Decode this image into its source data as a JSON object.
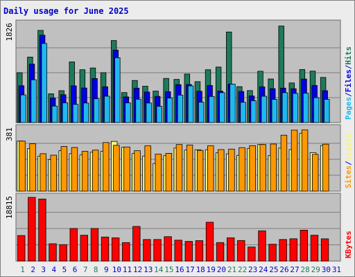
{
  "colors": {
    "background": "#ececec",
    "panel": "#c0c0c0",
    "title": "#0000c8",
    "hits": "#1e7a5a",
    "files": "#0000e0",
    "pages": "#20b8f0",
    "visits": "#f5f57a",
    "sites": "#ff9800",
    "kbytes": "#ff0000",
    "weekend": "#1e7a5a",
    "weekday": "#0000c8"
  },
  "chart_data": {
    "type": "bar",
    "title": "Daily usage for June 2025",
    "categories": [
      "1",
      "2",
      "3",
      "4",
      "5",
      "6",
      "7",
      "8",
      "9",
      "10",
      "11",
      "12",
      "13",
      "14",
      "15",
      "16",
      "17",
      "18",
      "19",
      "20",
      "21",
      "22",
      "23",
      "24",
      "25",
      "26",
      "27",
      "28",
      "29",
      "30",
      "31"
    ],
    "weekend_days": [
      "1",
      "7",
      "8",
      "14",
      "15",
      "21",
      "22",
      "28",
      "29"
    ],
    "grid": true,
    "panels": [
      {
        "id": "hpf",
        "max_label": "1826",
        "ylim": [
          0,
          1826
        ],
        "legend": [
          {
            "text": "Pages",
            "color_key": "pages"
          },
          {
            "text": "/",
            "color_key": "weekday"
          },
          {
            "text": "Files",
            "color_key": "files"
          },
          {
            "text": "/",
            "color_key": "weekday"
          },
          {
            "text": "Hits",
            "color_key": "hits"
          }
        ],
        "series": [
          {
            "name": "Hits",
            "color_key": "hits",
            "values": [
              927,
              1216,
              1712,
              535,
              592,
              1127,
              982,
              1014,
              927,
              1523,
              557,
              782,
              675,
              585,
              820,
              802,
              901,
              760,
              981,
              1031,
              1682,
              667,
              594,
              953,
              810,
              1793,
              736,
              985,
              956,
              838,
              0
            ]
          },
          {
            "name": "Files",
            "color_key": "files",
            "values": [
              684,
              1086,
              1623,
              456,
              517,
              682,
              642,
              818,
              665,
              1346,
              477,
              639,
              567,
              487,
              573,
              704,
              707,
              582,
              688,
              584,
              714,
              577,
              494,
              664,
              630,
              640,
              628,
              808,
              689,
              592,
              0
            ]
          },
          {
            "name": "Pages",
            "color_key": "pages",
            "values": [
              514,
              795,
              1469,
              306,
              366,
              338,
              363,
              442,
              490,
              1204,
              366,
              433,
              363,
              302,
              455,
              510,
              681,
              378,
              485,
              555,
              714,
              377,
              406,
              489,
              430,
              555,
              542,
              545,
              463,
              431,
              0
            ]
          }
        ]
      },
      {
        "id": "vs",
        "max_label": "381",
        "ylim": [
          0,
          381
        ],
        "legend": [
          {
            "text": "Sites",
            "color_key": "sites"
          },
          {
            "text": "/",
            "color_key": "weekday"
          },
          {
            "text": "Visits",
            "color_key": "visits"
          }
        ],
        "series": [
          {
            "name": "Visits",
            "color_key": "visits",
            "values": [
              306,
              260,
              213,
              193,
              247,
              229,
              221,
              238,
              244,
              304,
              268,
              230,
              214,
              169,
              217,
              263,
              251,
              253,
              253,
              234,
              228,
              219,
              261,
              285,
              217,
              263,
              254,
              353,
              235,
              279,
              0
            ]
          },
          {
            "name": "Sites",
            "color_key": "sites",
            "values": [
              306,
              290,
              229,
              220,
              273,
              267,
              243,
              251,
              297,
              280,
              270,
              247,
              277,
              226,
              231,
              285,
              282,
              249,
              277,
              254,
              257,
              266,
              278,
              285,
              288,
              342,
              373,
              374,
              225,
              287,
              0
            ]
          }
        ]
      },
      {
        "id": "kb",
        "max_label": "18815",
        "ylim": [
          0,
          18815
        ],
        "legend": [
          {
            "text": "KBytes",
            "color_key": "kbytes"
          }
        ],
        "series": [
          {
            "name": "KBytes",
            "color_key": "kbytes",
            "values": [
              7543,
              18815,
              18335,
              5116,
              4853,
              9630,
              7630,
              9630,
              7109,
              6874,
              5465,
              10230,
              6370,
              6370,
              7209,
              6172,
              5806,
              6037,
              11466,
              5465,
              6878,
              6072,
              4153,
              8935,
              4975,
              6372,
              6588,
              9130,
              7630,
              6572,
              0
            ]
          }
        ]
      }
    ]
  }
}
